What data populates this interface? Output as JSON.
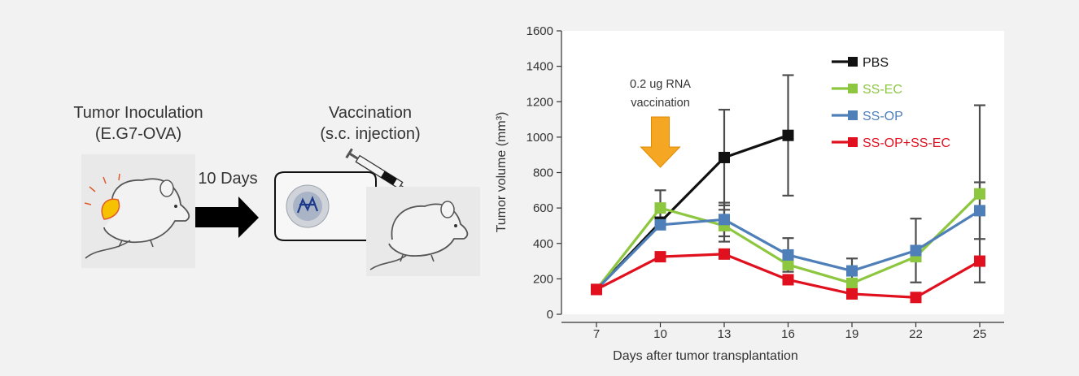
{
  "schematic": {
    "inoculation_title": "Tumor Inoculation",
    "inoculation_subtitle": "(E.G7-OVA)",
    "interval_label": "10 Days",
    "vaccination_title": "Vaccination",
    "vaccination_subtitle": "(s.c. injection)"
  },
  "colors": {
    "PBS": "#111111",
    "SS-EC": "#8dc63f",
    "SS-OP": "#4f7fb8",
    "SS-OP+SS-EC": "#e0101e",
    "arrow": "#f5a623",
    "error_bar": "#4d4d4d"
  },
  "chart_data": {
    "type": "line",
    "title": "",
    "xlabel": "Days after tumor transplantation",
    "ylabel": "Tumor volume (mm³)",
    "x": [
      7,
      10,
      13,
      16,
      19,
      22,
      25
    ],
    "ylim": [
      0,
      1600
    ],
    "yticks": [
      0,
      200,
      400,
      600,
      800,
      1000,
      1200,
      1400,
      1600
    ],
    "legend_position": "top-right",
    "annotation": {
      "line1": "0.2 ug RNA",
      "line2": "vaccination",
      "x": 10
    },
    "series": [
      {
        "name": "PBS",
        "x": [
          7,
          10,
          13,
          16
        ],
        "values": [
          140,
          520,
          885,
          1010
        ],
        "err": [
          0,
          0,
          270,
          340
        ]
      },
      {
        "name": "SS-EC",
        "x": [
          7,
          10,
          13,
          16,
          19,
          22,
          25
        ],
        "values": [
          140,
          600,
          500,
          280,
          175,
          325,
          680
        ],
        "err": [
          0,
          100,
          90,
          0,
          0,
          0,
          500
        ]
      },
      {
        "name": "SS-OP",
        "x": [
          7,
          10,
          13,
          16,
          19,
          22,
          25
        ],
        "values": [
          140,
          505,
          535,
          335,
          245,
          360,
          585
        ],
        "err": [
          0,
          0,
          95,
          95,
          70,
          180,
          160
        ]
      },
      {
        "name": "SS-OP+SS-EC",
        "x": [
          7,
          10,
          13,
          16,
          19,
          22,
          25
        ],
        "values": [
          140,
          325,
          340,
          195,
          115,
          95,
          300
        ],
        "err": [
          0,
          0,
          0,
          0,
          0,
          0,
          0
        ]
      }
    ]
  }
}
